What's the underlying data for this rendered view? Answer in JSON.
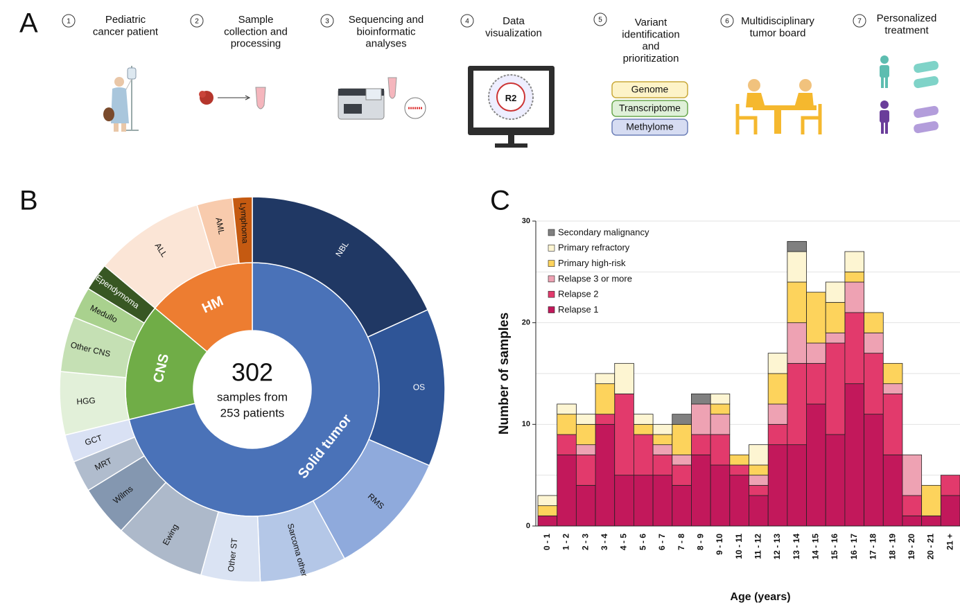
{
  "panel_labels": [
    "A",
    "B",
    "C"
  ],
  "workflow": {
    "steps": [
      {
        "number": 1,
        "label": [
          "Pediatric",
          "cancer patient"
        ]
      },
      {
        "number": 2,
        "label": [
          "Sample",
          "collection and",
          "processing"
        ]
      },
      {
        "number": 3,
        "label": [
          "Sequencing and",
          "bioinformatic",
          "analyses"
        ]
      },
      {
        "number": 4,
        "label": [
          "Data",
          "visualization"
        ]
      },
      {
        "number": 5,
        "label": [
          "Variant",
          "identification",
          "and",
          "prioritization"
        ]
      },
      {
        "number": 6,
        "label": [
          "Multidisciplinary",
          "tumor board"
        ]
      },
      {
        "number": 7,
        "label": [
          "Personalized",
          "treatment"
        ]
      }
    ],
    "monitor_text": "R2",
    "omics": [
      "Genome",
      "Transcriptome",
      "Methylome"
    ]
  },
  "chart_data": [
    {
      "type": "sunburst",
      "center_value": 302,
      "center_label": [
        "samples from",
        "253 patients"
      ],
      "groups": [
        {
          "name": "Solid tumor",
          "value": 215,
          "color": "#4a72b8",
          "children": [
            {
              "name": "NBL",
              "value": 55,
              "color": "#203864"
            },
            {
              "name": "OS",
              "value": 40,
              "color": "#2f5597"
            },
            {
              "name": "RMS",
              "value": 32,
              "color": "#8faadc"
            },
            {
              "name": "Sarcoma other",
              "value": 22,
              "color": "#b4c7e7"
            },
            {
              "name": "Other ST",
              "value": 15,
              "color": "#dae3f3"
            },
            {
              "name": "Ewing",
              "value": 23,
              "color": "#adb9ca"
            },
            {
              "name": "Wilms",
              "value": 13,
              "color": "#8497b0"
            },
            {
              "name": "MRT",
              "value": 8,
              "color": "#b0bccd"
            },
            {
              "name": "GCT",
              "value": 7,
              "color": "#d9e1f4"
            }
          ]
        },
        {
          "name": "CNS",
          "value": 45,
          "color": "#70ad47",
          "children": [
            {
              "name": "HGG",
              "value": 16,
              "color": "#e2f0d9"
            },
            {
              "name": "Other CNS",
              "value": 14,
              "color": "#c5e0b4"
            },
            {
              "name": "Medullo",
              "value": 8,
              "color": "#a9d18e"
            },
            {
              "name": "Ependymoma",
              "value": 7,
              "color": "#385723"
            }
          ]
        },
        {
          "name": "HM",
          "value": 42,
          "color": "#ed7d31",
          "children": [
            {
              "name": "ALL",
              "value": 28,
              "color": "#fbe5d6"
            },
            {
              "name": "AML",
              "value": 9,
              "color": "#f8cbad"
            },
            {
              "name": "Lymphoma",
              "value": 5,
              "color": "#c55a11"
            }
          ]
        }
      ]
    },
    {
      "type": "bar",
      "stacked": true,
      "x_label": "Age (years)",
      "y_label": "Number of samples",
      "categories": [
        "0 - 1",
        "1 - 2",
        "2 - 3",
        "3 - 4",
        "4 - 5",
        "5 - 6",
        "6 - 7",
        "7 - 8",
        "8 - 9",
        "9 - 10",
        "10 - 11",
        "11 - 12",
        "12 - 13",
        "13 - 14",
        "14 - 15",
        "15 - 16",
        "16 - 17",
        "17 - 18",
        "18 - 19",
        "19 - 20",
        "20 - 21",
        "21 +"
      ],
      "series": [
        {
          "name": "Relapse 1",
          "color": "#c2185b",
          "values": [
            1,
            7,
            4,
            10,
            5,
            5,
            5,
            4,
            7,
            6,
            5,
            3,
            8,
            8,
            12,
            9,
            14,
            11,
            7,
            1,
            1,
            3
          ]
        },
        {
          "name": "Relapse 2",
          "color": "#e23a6c",
          "values": [
            0,
            2,
            3,
            1,
            8,
            4,
            2,
            2,
            2,
            3,
            1,
            1,
            2,
            8,
            4,
            9,
            7,
            6,
            6,
            2,
            0,
            2
          ]
        },
        {
          "name": "Relapse 3 or more",
          "color": "#eea2b3",
          "values": [
            0,
            0,
            1,
            0,
            0,
            0,
            1,
            1,
            3,
            2,
            0,
            1,
            2,
            4,
            2,
            1,
            3,
            2,
            1,
            4,
            0,
            0
          ]
        },
        {
          "name": "Primary high-risk",
          "color": "#fdd35c",
          "values": [
            1,
            2,
            2,
            3,
            0,
            1,
            1,
            3,
            0,
            1,
            1,
            1,
            3,
            4,
            5,
            3,
            1,
            2,
            2,
            0,
            3,
            0
          ]
        },
        {
          "name": "Primary refractory",
          "color": "#fdf5d2",
          "values": [
            1,
            1,
            1,
            1,
            3,
            1,
            1,
            0,
            0,
            1,
            0,
            2,
            2,
            3,
            0,
            2,
            2,
            0,
            0,
            0,
            0,
            0
          ]
        },
        {
          "name": "Secondary malignancy",
          "color": "#808080",
          "values": [
            0,
            0,
            0,
            0,
            0,
            0,
            0,
            1,
            1,
            0,
            0,
            0,
            0,
            1,
            0,
            0,
            0,
            0,
            0,
            0,
            0,
            0
          ]
        }
      ],
      "ylim": [
        0,
        30
      ],
      "yticks": [
        0,
        10,
        20,
        30
      ],
      "ygrid": [
        5,
        10,
        15,
        20,
        25,
        30
      ],
      "legend": "upper left"
    }
  ]
}
